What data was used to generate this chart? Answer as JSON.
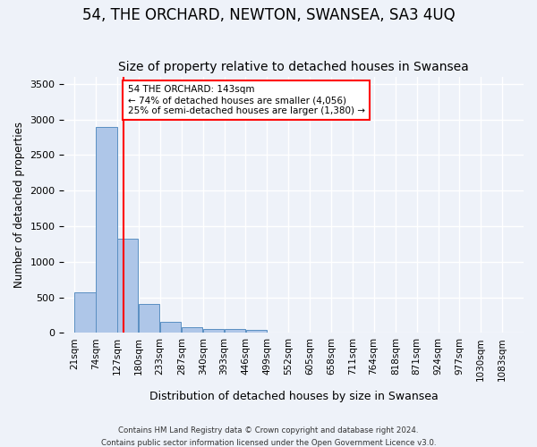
{
  "title": "54, THE ORCHARD, NEWTON, SWANSEA, SA3 4UQ",
  "subtitle": "Size of property relative to detached houses in Swansea",
  "xlabel": "Distribution of detached houses by size in Swansea",
  "ylabel": "Number of detached properties",
  "footer_line1": "Contains HM Land Registry data © Crown copyright and database right 2024.",
  "footer_line2": "Contains public sector information licensed under the Open Government Licence v3.0.",
  "annotation_line1": "54 THE ORCHARD: 143sqm",
  "annotation_line2": "← 74% of detached houses are smaller (4,056)",
  "annotation_line3": "25% of semi-detached houses are larger (1,380) →",
  "bar_color": "#aec6e8",
  "bar_edge_color": "#5a8fc2",
  "redline_x": 143,
  "categories": [
    "21sqm",
    "74sqm",
    "127sqm",
    "180sqm",
    "233sqm",
    "287sqm",
    "340sqm",
    "393sqm",
    "446sqm",
    "499sqm",
    "552sqm",
    "605sqm",
    "658sqm",
    "711sqm",
    "764sqm",
    "818sqm",
    "871sqm",
    "924sqm",
    "977sqm",
    "1030sqm",
    "1083sqm"
  ],
  "bin_left_edges": [
    21,
    74,
    127,
    180,
    233,
    287,
    340,
    393,
    446,
    499,
    552,
    605,
    658,
    711,
    764,
    818,
    871,
    924,
    977,
    1030
  ],
  "bar_heights": [
    570,
    2900,
    1330,
    410,
    155,
    80,
    60,
    55,
    45,
    0,
    0,
    0,
    0,
    0,
    0,
    0,
    0,
    0,
    0,
    0
  ],
  "ylim": [
    0,
    3600
  ],
  "yticks": [
    0,
    500,
    1000,
    1500,
    2000,
    2500,
    3000,
    3500
  ],
  "xlim_left": -5,
  "xlim_right": 1136,
  "background_color": "#eef2f9",
  "grid_color": "#ffffff",
  "title_fontsize": 12,
  "subtitle_fontsize": 10
}
